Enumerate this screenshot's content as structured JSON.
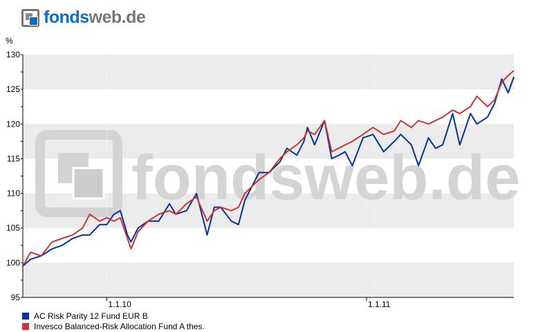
{
  "logo": {
    "part1": "fonds",
    "part2": "web.de"
  },
  "chart_data": {
    "type": "line",
    "ylabel": "%",
    "ylim": [
      95,
      130
    ],
    "yticks": [
      95,
      100,
      105,
      110,
      115,
      120,
      125,
      130
    ],
    "xlim": [
      "2009-09-05",
      "2011-07-27"
    ],
    "xticks": [
      {
        "date": "2010-01-01",
        "label": "1.1.10"
      },
      {
        "date": "2011-01-01",
        "label": "1.1.11"
      }
    ],
    "grid": "alternating horizontal bands, dotted vertical lines at ticks",
    "watermark": "fondsweb.de",
    "legend_position": "bottom-left",
    "x": [
      "2009-09-05",
      "2009-09-16",
      "2009-10-01",
      "2009-10-16",
      "2009-10-30",
      "2009-11-14",
      "2009-11-28",
      "2009-12-08",
      "2009-12-22",
      "2010-01-01",
      "2010-01-11",
      "2010-01-20",
      "2010-01-30",
      "2010-02-04",
      "2010-02-14",
      "2010-02-28",
      "2010-03-15",
      "2010-03-30",
      "2010-04-08",
      "2010-04-23",
      "2010-05-07",
      "2010-05-22",
      "2010-06-01",
      "2010-06-10",
      "2010-06-25",
      "2010-07-05",
      "2010-07-14",
      "2010-07-24",
      "2010-08-03",
      "2010-08-17",
      "2010-09-01",
      "2010-09-11",
      "2010-09-25",
      "2010-10-05",
      "2010-10-10",
      "2010-10-20",
      "2010-11-03",
      "2010-11-13",
      "2010-11-23",
      "2010-12-02",
      "2010-12-12",
      "2010-12-27",
      "2011-01-10",
      "2011-01-25",
      "2011-02-09",
      "2011-02-18",
      "2011-03-05",
      "2011-03-15",
      "2011-03-29",
      "2011-04-08",
      "2011-04-18",
      "2011-05-02",
      "2011-05-12",
      "2011-05-27",
      "2011-06-05",
      "2011-06-20",
      "2011-06-30",
      "2011-07-10",
      "2011-07-19",
      "2011-07-27"
    ],
    "series": [
      {
        "name": "AC Risk Parity 12 Fund EUR B",
        "color": "#003399",
        "values": [
          99.5,
          100.5,
          101,
          102,
          102.5,
          103.5,
          104,
          104,
          105.5,
          105.5,
          107,
          107.5,
          104,
          103,
          105,
          106,
          106,
          108.5,
          107,
          107.5,
          110,
          104,
          108,
          108,
          106,
          105.5,
          109,
          111,
          113,
          113,
          114.5,
          116.5,
          115.5,
          117.5,
          119.5,
          117,
          120.5,
          115,
          115.5,
          116,
          114,
          118,
          118.5,
          116,
          117.5,
          118.5,
          117,
          114,
          118,
          116.5,
          117,
          121.5,
          117,
          121.5,
          120,
          121,
          123,
          126.5,
          124.5,
          126.8
        ]
      },
      {
        "name": "Invesco Balanced-Risk Allocation Fund A thes.",
        "color": "#cc3333",
        "values": [
          99.5,
          101.5,
          101,
          103,
          103.5,
          104,
          105,
          107,
          106,
          106.5,
          106,
          106.5,
          103.5,
          102,
          104.5,
          106,
          107,
          107.5,
          107,
          108.5,
          109.5,
          106,
          107.5,
          108,
          107.5,
          108,
          110,
          111,
          112,
          113,
          115,
          116,
          117,
          118,
          119,
          118.5,
          120.5,
          116,
          116.5,
          117,
          117.5,
          118.5,
          119.5,
          118.5,
          119,
          120.5,
          119.5,
          120.5,
          120,
          120.5,
          121,
          122,
          121.5,
          122.5,
          124,
          122.5,
          123.5,
          126,
          127,
          127.7
        ]
      }
    ]
  }
}
